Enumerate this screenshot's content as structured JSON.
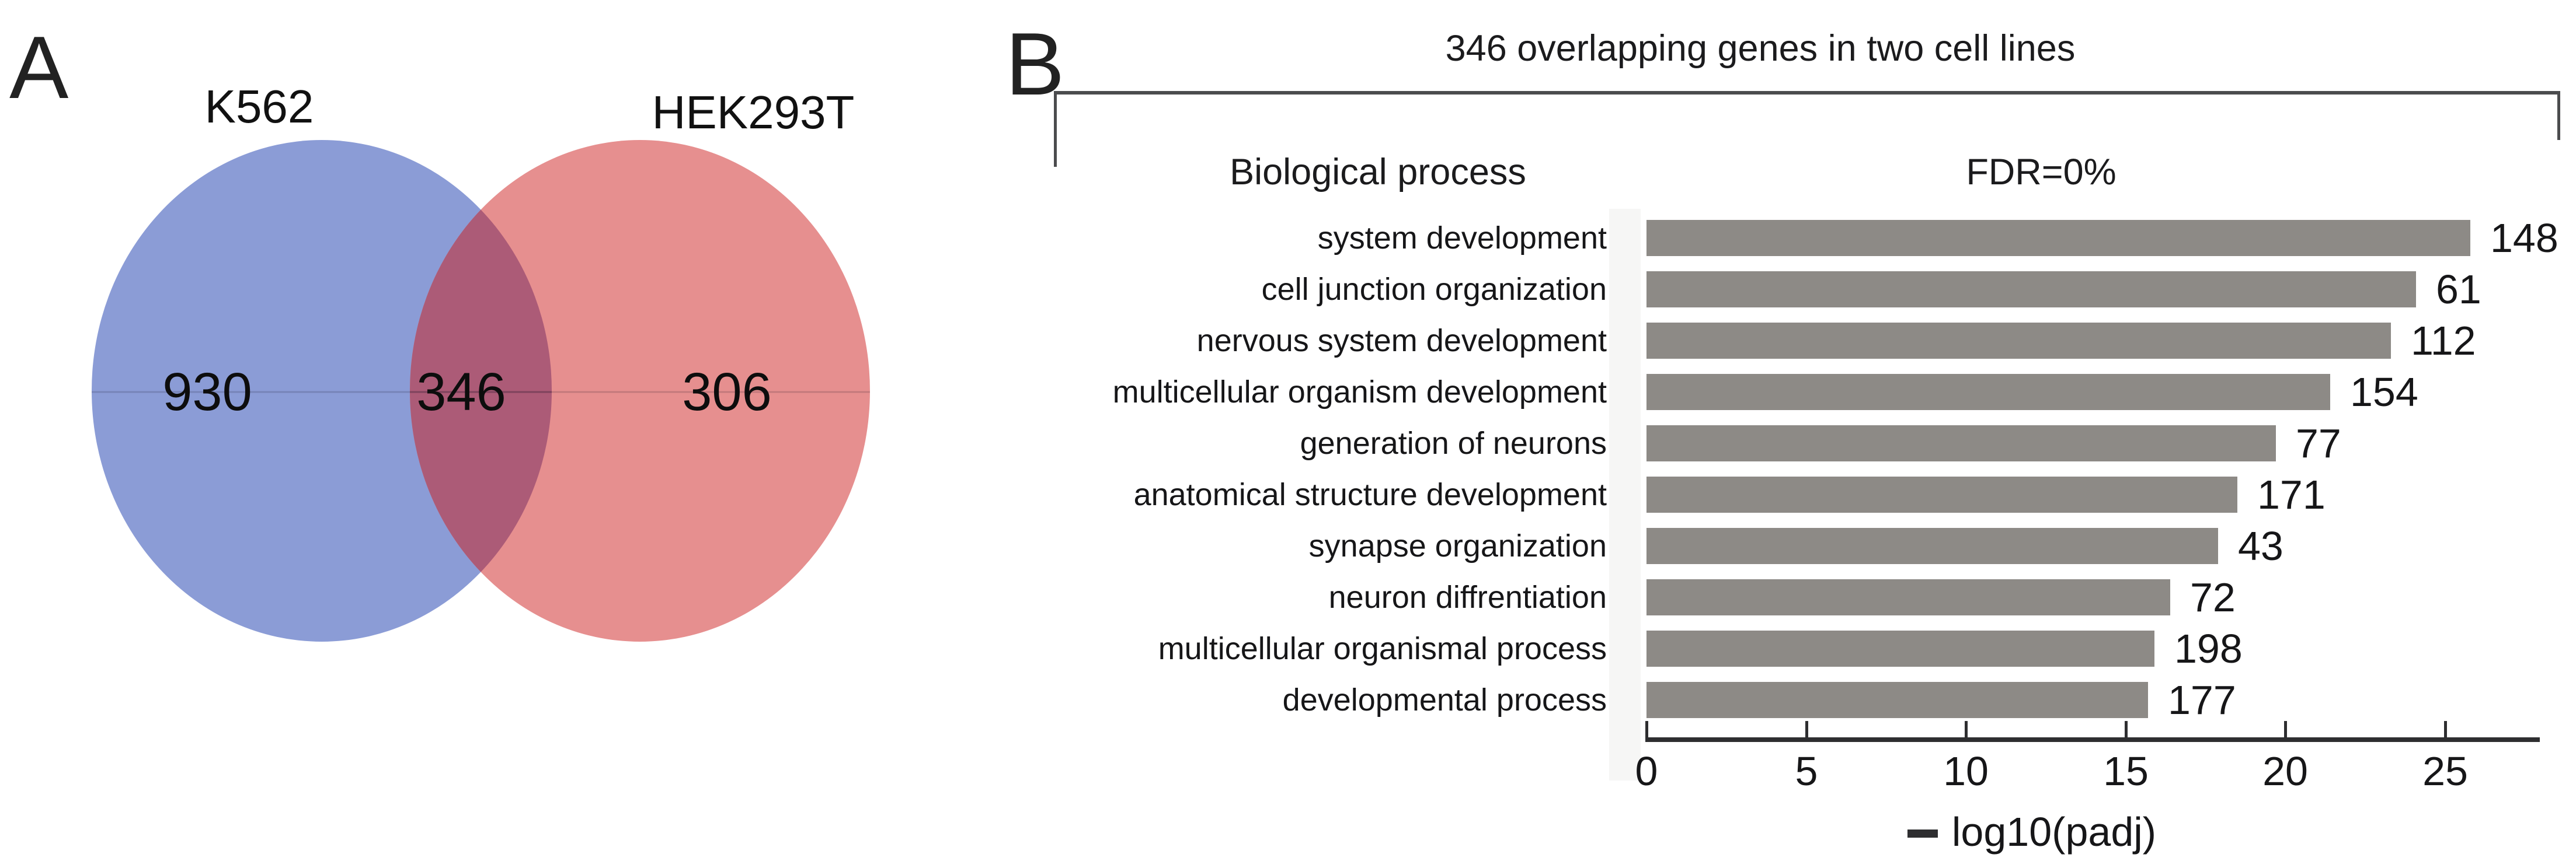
{
  "panels": {
    "a_label": "A",
    "b_label": "B"
  },
  "chart_data": [
    {
      "type": "venn",
      "sets": [
        {
          "label": "K562",
          "unique_count": "930",
          "color": "#8B9CD6"
        },
        {
          "label": "HEK293T",
          "unique_count": "306",
          "color": "#E68F8F"
        }
      ],
      "overlap": {
        "count": "346",
        "color": "#AC5B77"
      }
    },
    {
      "type": "bar",
      "orientation": "horizontal",
      "title": "346 overlapping genes in two cell lines",
      "header_left": "Biological process",
      "header_right": "FDR=0%",
      "categories": [
        "system development",
        "cell junction organization",
        "nervous system development",
        "multicellular organism development",
        "generation of neurons",
        "anatomical structure development",
        "synapse organization",
        "neuron diffrentiation",
        "multicellular organismal  process",
        "developmental process"
      ],
      "values": [
        25.8,
        24.1,
        23.3,
        21.4,
        19.7,
        18.5,
        17.9,
        16.4,
        15.9,
        15.7
      ],
      "gene_counts": [
        148,
        61,
        112,
        154,
        77,
        171,
        43,
        72,
        198,
        177
      ],
      "xticks": [
        0,
        5,
        10,
        15,
        20,
        25
      ],
      "xlim": [
        0,
        28
      ],
      "xlabel": "− log10(padj)",
      "xlabel_text": "log10(padj)",
      "bar_color": "#8D8A86",
      "grid": false,
      "legend": false
    }
  ]
}
